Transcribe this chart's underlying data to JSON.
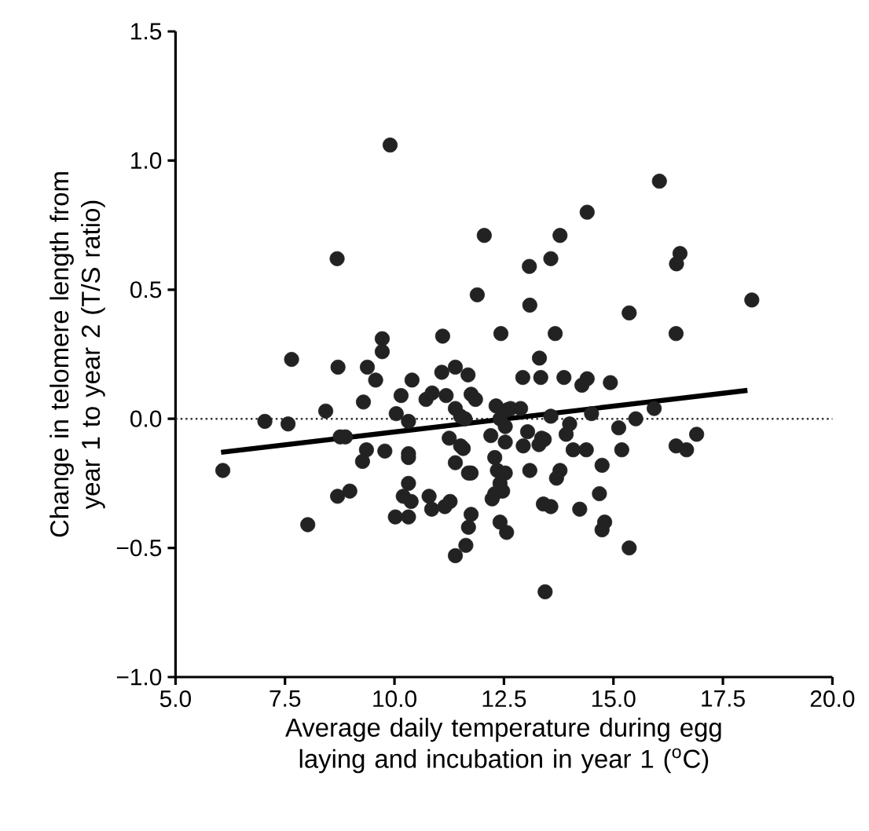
{
  "chart_data": {
    "type": "scatter",
    "xlabel": "Average daily temperature during egg laying and incubation in year 1 ($^{o}$C)",
    "ylabel": "Change in telomere length from year 1 to year 2 (T/S ratio)",
    "xlim": [
      5,
      20
    ],
    "ylim": [
      -1,
      1.5
    ],
    "xticks": [
      {
        "value": 5,
        "label": "5.0"
      },
      7.5,
      {
        "value": 10,
        "label": "10.0"
      },
      12.5,
      {
        "value": 15,
        "label": "15.0"
      },
      17.5,
      {
        "value": 20,
        "label": "20.0"
      }
    ],
    "yticks": [
      {
        "value": -1,
        "label": "−1.0"
      },
      {
        "value": -0.5,
        "label": "−0.5"
      },
      {
        "value": 0,
        "label": "0.0"
      },
      0.5,
      {
        "value": 1,
        "label": "1.0"
      },
      1.5
    ],
    "ref_lines": [
      {
        "axis": "y",
        "value": 0,
        "line_style": "dotted",
        "color": "#333333"
      }
    ],
    "series": [
      {
        "marker": "circle",
        "color": "#222222",
        "x": [
          9.9,
          12.05,
          8.69,
          11.89,
          9.72,
          9.72,
          11.1,
          12.43,
          7.65,
          8.71,
          9.38,
          9.57,
          10.4,
          11.08,
          11.39,
          11.68,
          10.15,
          10.72,
          10.86,
          11.18,
          11.75,
          11.85,
          9.29,
          8.43,
          10.04,
          11.39,
          11.61,
          12.32,
          7.04,
          7.57,
          10.32,
          8.76,
          8.88,
          11.25,
          12.2,
          9.36,
          9.78,
          10.32,
          11.57,
          16.05,
          14.4,
          13.78,
          13.08,
          13.57,
          16.52,
          16.44,
          13.09,
          18.16,
          15.36,
          13.67,
          16.43,
          13.31,
          12.93,
          13.34,
          13.87,
          14.28,
          14.4,
          14.93,
          15.93,
          12.58,
          12.88,
          13.57,
          14.5,
          14.0,
          15.12,
          15.51,
          16.9,
          12.53,
          13.04,
          13.36,
          13.92,
          12.94,
          13.3,
          13.42,
          14.08,
          14.38,
          15.19,
          16.43,
          16.67,
          12.29,
          12.35,
          12.53,
          12.41,
          12.47,
          12.29,
          12.23,
          11.75,
          13.09,
          13.78,
          13.7,
          13.4,
          13.57,
          14.23,
          14.68,
          14.8,
          14.74,
          12.41,
          12.56,
          15.36,
          13.44,
          6.08,
          8.02,
          8.7,
          8.98,
          9.27,
          10.32,
          11.39,
          11.69,
          11.51,
          10.32,
          10.2,
          10.38,
          10.79,
          10.85,
          11.15,
          11.27,
          10.02,
          10.32,
          11.75,
          11.69,
          11.63,
          11.39,
          12.65,
          11.51,
          12.41,
          12.53,
          14.74
        ],
        "values": [
          1.06,
          0.71,
          0.62,
          0.48,
          0.31,
          0.26,
          0.32,
          0.33,
          0.23,
          0.2,
          0.2,
          0.15,
          0.15,
          0.18,
          0.2,
          0.17,
          0.09,
          0.075,
          0.1,
          0.09,
          0.095,
          0.075,
          0.065,
          0.03,
          0.02,
          0.04,
          0.0,
          0.05,
          -0.01,
          -0.02,
          -0.01,
          -0.07,
          -0.07,
          -0.075,
          -0.065,
          -0.12,
          -0.125,
          -0.135,
          -0.115,
          0.92,
          0.8,
          0.71,
          0.59,
          0.62,
          0.64,
          0.6,
          0.44,
          0.46,
          0.41,
          0.33,
          0.33,
          0.235,
          0.16,
          0.16,
          0.16,
          0.13,
          0.155,
          0.14,
          0.04,
          0.035,
          0.04,
          0.01,
          0.02,
          -0.02,
          -0.035,
          0.0,
          -0.06,
          -0.09,
          -0.05,
          -0.075,
          -0.06,
          -0.105,
          -0.1,
          -0.08,
          -0.12,
          -0.12,
          -0.12,
          -0.105,
          -0.12,
          -0.15,
          -0.2,
          -0.21,
          -0.25,
          -0.28,
          -0.29,
          -0.31,
          -0.21,
          -0.2,
          -0.2,
          -0.23,
          -0.33,
          -0.34,
          -0.35,
          -0.29,
          -0.4,
          -0.43,
          -0.4,
          -0.44,
          -0.5,
          -0.67,
          -0.2,
          -0.41,
          -0.3,
          -0.28,
          -0.165,
          -0.15,
          -0.17,
          -0.21,
          -0.105,
          -0.25,
          -0.3,
          -0.32,
          -0.3,
          -0.35,
          -0.34,
          -0.32,
          -0.38,
          -0.38,
          -0.37,
          -0.42,
          -0.49,
          -0.53,
          0.04,
          0.01,
          0.0,
          -0.03,
          -0.18
        ]
      },
      {
        "type": "line",
        "marker": "none",
        "line_style": "solid",
        "color": "#000000",
        "x": [
          6.04,
          18.06
        ],
        "values": [
          -0.13,
          0.11
        ]
      }
    ]
  }
}
